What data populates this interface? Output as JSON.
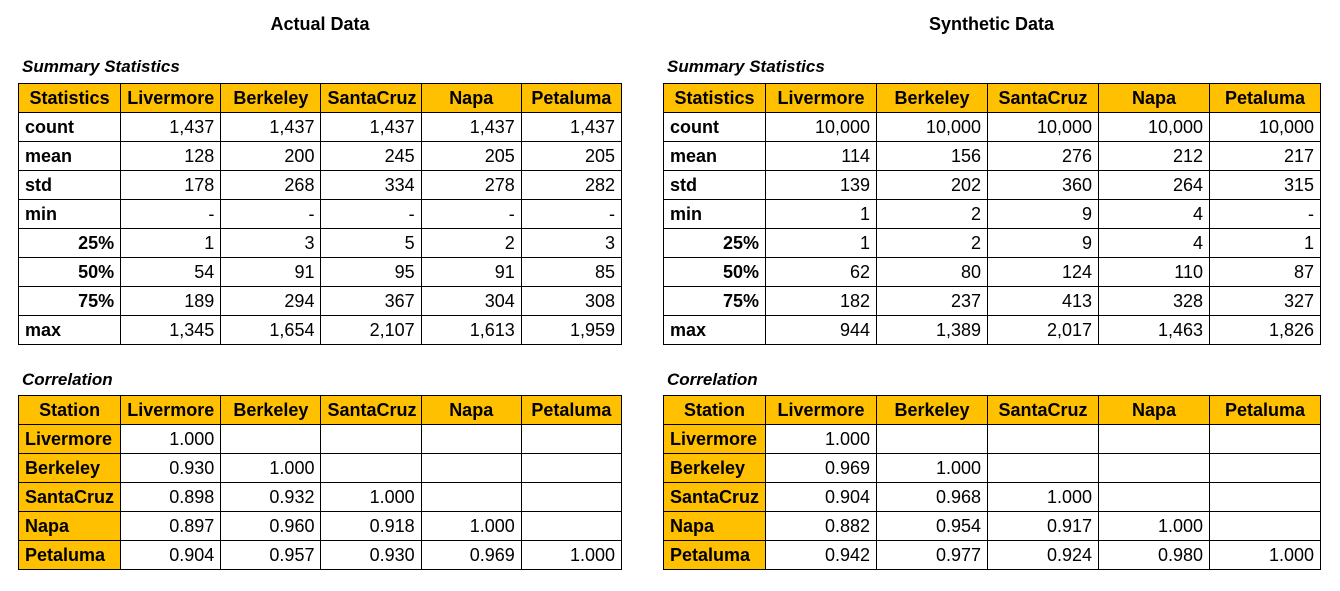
{
  "actual": {
    "heading": "Actual Data",
    "summary_title": "Summary Statistics",
    "summary_headers": [
      "Statistics",
      "Livermore",
      "Berkeley",
      "SantaCruz",
      "Napa",
      "Petaluma"
    ],
    "summary_rows": [
      {
        "label": "count",
        "values": [
          "1,437",
          "1,437",
          "1,437",
          "1,437",
          "1,437"
        ]
      },
      {
        "label": "mean",
        "values": [
          "128",
          "200",
          "245",
          "205",
          "205"
        ]
      },
      {
        "label": "std",
        "values": [
          "178",
          "268",
          "334",
          "278",
          "282"
        ]
      },
      {
        "label": "min",
        "values": [
          "-",
          "-",
          "-",
          "-",
          "-"
        ]
      },
      {
        "label": "25%",
        "values": [
          "1",
          "3",
          "5",
          "2",
          "3"
        ]
      },
      {
        "label": "50%",
        "values": [
          "54",
          "91",
          "95",
          "91",
          "85"
        ]
      },
      {
        "label": "75%",
        "values": [
          "189",
          "294",
          "367",
          "304",
          "308"
        ]
      },
      {
        "label": "max",
        "values": [
          "1,345",
          "1,654",
          "2,107",
          "1,613",
          "1,959"
        ]
      }
    ],
    "corr_title": "Correlation",
    "corr_headers": [
      "Station",
      "Livermore",
      "Berkeley",
      "SantaCruz",
      "Napa",
      "Petaluma"
    ],
    "corr_rows": [
      {
        "label": "Livermore",
        "values": [
          "1.000",
          "",
          "",
          "",
          ""
        ]
      },
      {
        "label": "Berkeley",
        "values": [
          "0.930",
          "1.000",
          "",
          "",
          ""
        ]
      },
      {
        "label": "SantaCruz",
        "values": [
          "0.898",
          "0.932",
          "1.000",
          "",
          ""
        ]
      },
      {
        "label": "Napa",
        "values": [
          "0.897",
          "0.960",
          "0.918",
          "1.000",
          ""
        ]
      },
      {
        "label": "Petaluma",
        "values": [
          "0.904",
          "0.957",
          "0.930",
          "0.969",
          "1.000"
        ]
      }
    ]
  },
  "synthetic": {
    "heading": "Synthetic Data",
    "summary_title": "Summary Statistics",
    "summary_headers": [
      "Statistics",
      "Livermore",
      "Berkeley",
      "SantaCruz",
      "Napa",
      "Petaluma"
    ],
    "summary_rows": [
      {
        "label": "count",
        "values": [
          "10,000",
          "10,000",
          "10,000",
          "10,000",
          "10,000"
        ]
      },
      {
        "label": "mean",
        "values": [
          "114",
          "156",
          "276",
          "212",
          "217"
        ]
      },
      {
        "label": "std",
        "values": [
          "139",
          "202",
          "360",
          "264",
          "315"
        ]
      },
      {
        "label": "min",
        "values": [
          "1",
          "2",
          "9",
          "4",
          "-"
        ]
      },
      {
        "label": "25%",
        "values": [
          "1",
          "2",
          "9",
          "4",
          "1"
        ]
      },
      {
        "label": "50%",
        "values": [
          "62",
          "80",
          "124",
          "110",
          "87"
        ]
      },
      {
        "label": "75%",
        "values": [
          "182",
          "237",
          "413",
          "328",
          "327"
        ]
      },
      {
        "label": "max",
        "values": [
          "944",
          "1,389",
          "2,017",
          "1,463",
          "1,826"
        ]
      }
    ],
    "corr_title": "Correlation",
    "corr_headers": [
      "Station",
      "Livermore",
      "Berkeley",
      "SantaCruz",
      "Napa",
      "Petaluma"
    ],
    "corr_rows": [
      {
        "label": "Livermore",
        "values": [
          "1.000",
          "",
          "",
          "",
          ""
        ]
      },
      {
        "label": "Berkeley",
        "values": [
          "0.969",
          "1.000",
          "",
          "",
          ""
        ]
      },
      {
        "label": "SantaCruz",
        "values": [
          "0.904",
          "0.968",
          "1.000",
          "",
          ""
        ]
      },
      {
        "label": "Napa",
        "values": [
          "0.882",
          "0.954",
          "0.917",
          "1.000",
          ""
        ]
      },
      {
        "label": "Petaluma",
        "values": [
          "0.942",
          "0.977",
          "0.924",
          "0.980",
          "1.000"
        ]
      }
    ]
  },
  "colors": {
    "header_fill": "#ffc000",
    "border": "#000000"
  }
}
